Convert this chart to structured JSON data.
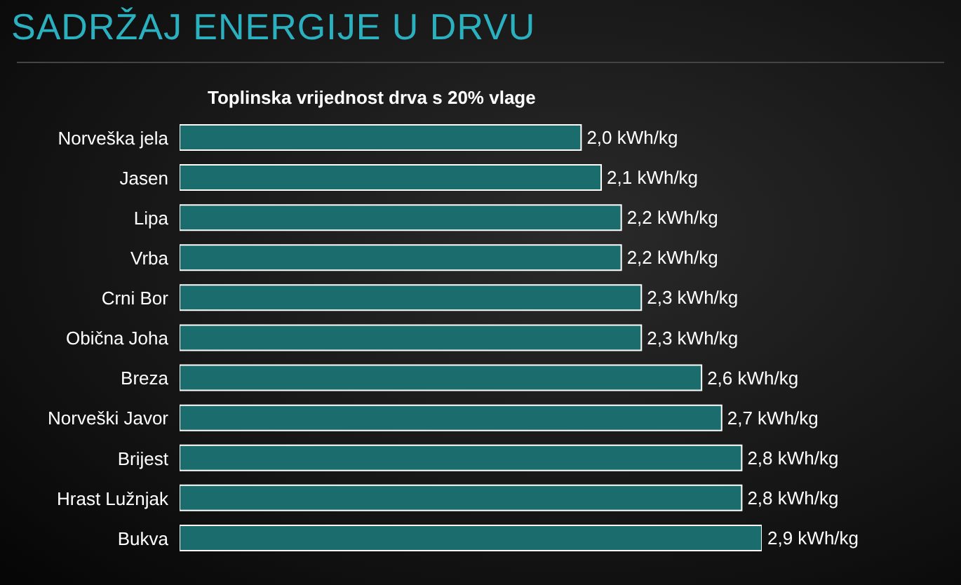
{
  "chart_data": {
    "type": "bar",
    "orientation": "horizontal",
    "title": "SADRŽAJ ENERGIJE U DRVU",
    "subtitle": "Toplinska vrijednost drva s 20% vlage",
    "categories": [
      "Norveška jela",
      "Jasen",
      "Lipa",
      "Vrba",
      "Crni Bor",
      "Obična Joha",
      "Breza",
      "Norveški Javor",
      "Brijest",
      "Hrast Lužnjak",
      "Bukva"
    ],
    "values": [
      2.0,
      2.1,
      2.2,
      2.2,
      2.3,
      2.3,
      2.6,
      2.7,
      2.8,
      2.8,
      2.9
    ],
    "value_labels": [
      "2,0 kWh/kg",
      "2,1 kWh/kg",
      "2,2 kWh/kg",
      "2,2 kWh/kg",
      "2,3 kWh/kg",
      "2,3 kWh/kg",
      "2,6 kWh/kg",
      "2,7 kWh/kg",
      "2,8 kWh/kg",
      "2,8 kWh/kg",
      "2,9 kWh/kg"
    ],
    "color": "#1b6c6c"
  }
}
